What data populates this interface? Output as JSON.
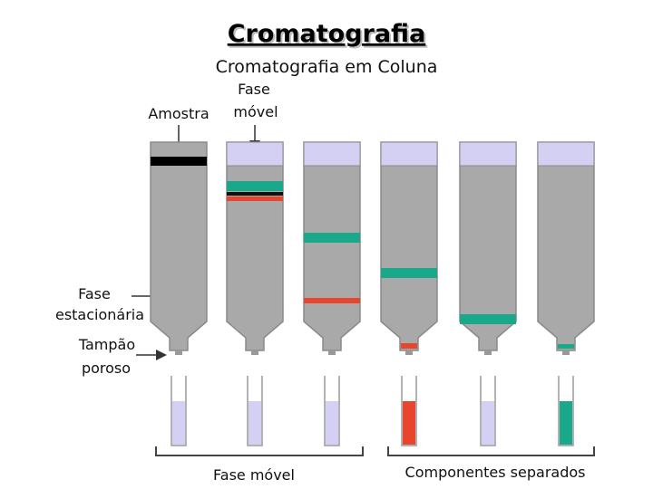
{
  "header": {
    "title": "Cromatografia",
    "subtitle": "Cromatografia em Coluna"
  },
  "labels": {
    "sample": "Amostra",
    "mobile_phase": [
      "Fase",
      "móvel"
    ],
    "stationary_phase": [
      "Fase",
      "estacionária"
    ],
    "porous_plug": [
      "Tampão",
      "poroso"
    ]
  },
  "footer": {
    "mobile_phase": "Fase móvel",
    "separated_components": "Componentes separados"
  }
}
